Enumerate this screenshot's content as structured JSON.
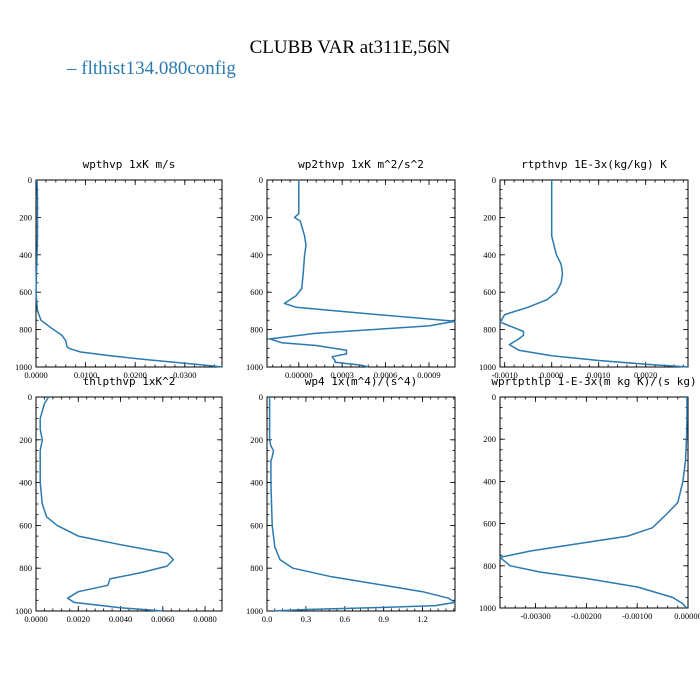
{
  "page": {
    "title": "CLUBB VAR at311E,56N",
    "legend_label": "flthist134.080config",
    "line_color": "#2a7ab0"
  },
  "chart_data": [
    {
      "type": "line",
      "title": "wpthvp  1xK m/s",
      "xlim": [
        0,
        0.0375
      ],
      "ylim": [
        1000,
        0
      ],
      "xticks": [
        0,
        0.01,
        0.02,
        0.03
      ],
      "xtick_labels": [
        "0.0000",
        "0.0100",
        "0.0200",
        "0.0300"
      ],
      "yticks": [
        0,
        200,
        400,
        600,
        800,
        1000
      ],
      "ytick_labels": [
        "0",
        "200",
        "400",
        "600",
        "800",
        "1000"
      ],
      "series": [
        {
          "x": [
            0.0002,
            0.0003,
            0.0003,
            0.0003,
            0.0002,
            0.0001,
            0.0,
            0.0003,
            0.001,
            0.003,
            0.0052,
            0.006,
            0.0062,
            0.0066,
            0.009,
            0.015,
            0.022,
            0.03,
            0.036,
            0.0375
          ],
          "y": [
            0,
            100,
            200,
            300,
            400,
            500,
            600,
            700,
            750,
            790,
            830,
            860,
            890,
            900,
            920,
            940,
            960,
            980,
            995,
            1000
          ]
        }
      ]
    },
    {
      "type": "line",
      "title": "wp2thvp  1xK m^2/s^2",
      "xlim": [
        -0.00022,
        0.00108
      ],
      "ylim": [
        1000,
        0
      ],
      "xticks": [
        0,
        0.0003,
        0.0006,
        0.0009
      ],
      "xtick_labels": [
        "0.00000",
        "0.0003",
        "0.0006",
        "0.0009"
      ],
      "yticks": [
        0,
        200,
        400,
        600,
        800,
        1000
      ],
      "ytick_labels": [
        "0",
        "200",
        "400",
        "600",
        "800",
        "1000"
      ],
      "series": [
        {
          "x": [
            0.0,
            0.0,
            0.0,
            -3e-05,
            1e-05,
            4e-05,
            5e-05,
            4e-05,
            3e-05,
            2e-05,
            -2e-05,
            -0.0001,
            -2e-05,
            0.0004,
            0.00108,
            0.0009,
            0.00012,
            -0.0002,
            -0.00012,
            0.00012,
            0.00033,
            0.00033,
            0.00023,
            0.00025,
            0.00025,
            0.00043,
            0.00048
          ],
          "y": [
            0,
            100,
            180,
            200,
            220,
            300,
            350,
            400,
            500,
            580,
            620,
            660,
            680,
            710,
            755,
            780,
            820,
            850,
            870,
            885,
            910,
            930,
            945,
            965,
            975,
            990,
            1000
          ]
        }
      ]
    },
    {
      "type": "line",
      "title": "rtpthvp  1E-3x(kg/kg) K",
      "xlim": [
        -0.0011,
        0.0029
      ],
      "ylim": [
        1000,
        0
      ],
      "xticks": [
        -0.001,
        0,
        0.001,
        0.002
      ],
      "xtick_labels": [
        "-0.0010",
        "0.0000",
        "0.0010",
        "0.0020"
      ],
      "yticks": [
        0,
        200,
        400,
        600,
        800,
        1000
      ],
      "ytick_labels": [
        "0",
        "200",
        "400",
        "600",
        "800",
        "1000"
      ],
      "series": [
        {
          "x": [
            0.0,
            0.0,
            0.0,
            0.0,
            0.0001,
            0.0002,
            0.00023,
            0.0002,
            0.0001,
            -0.0001,
            -0.0005,
            -0.001,
            -0.0011,
            -0.0008,
            -0.0006,
            -0.0006,
            -0.0007,
            -0.0009,
            -0.0007,
            0.0,
            0.001,
            0.002,
            0.0029
          ],
          "y": [
            0,
            100,
            200,
            300,
            400,
            450,
            500,
            550,
            600,
            640,
            680,
            720,
            760,
            790,
            810,
            830,
            850,
            880,
            910,
            940,
            965,
            985,
            1000
          ]
        }
      ]
    },
    {
      "type": "line",
      "title": "thlpthvp  1xK^2",
      "xlim": [
        0,
        0.0088
      ],
      "ylim": [
        1000,
        0
      ],
      "xticks": [
        0,
        0.002,
        0.004,
        0.006,
        0.008
      ],
      "xtick_labels": [
        "0.0000",
        "0.0020",
        "0.0040",
        "0.0060",
        "0.0080"
      ],
      "yticks": [
        0,
        200,
        400,
        600,
        800,
        1000
      ],
      "ytick_labels": [
        "0",
        "200",
        "400",
        "600",
        "800",
        "1000"
      ],
      "series": [
        {
          "x": [
            0.0006,
            0.0004,
            0.0002,
            0.0002,
            0.0003,
            0.0002,
            0.0002,
            0.0002,
            0.0003,
            0.0005,
            0.001,
            0.002,
            0.004,
            0.0062,
            0.0065,
            0.0062,
            0.005,
            0.0035,
            0.0034,
            0.002,
            0.0015,
            0.0018,
            0.004,
            0.006
          ],
          "y": [
            0,
            30,
            100,
            150,
            200,
            250,
            300,
            400,
            500,
            560,
            600,
            650,
            690,
            730,
            760,
            790,
            820,
            850,
            880,
            910,
            940,
            960,
            985,
            1000
          ]
        }
      ]
    },
    {
      "type": "line",
      "title": "wp4  1x(m^4)/(s^4)",
      "xlim": [
        0,
        1.45
      ],
      "ylim": [
        1000,
        0
      ],
      "xticks": [
        0,
        0.3,
        0.6,
        0.9,
        1.2
      ],
      "xtick_labels": [
        "0.0",
        "0.3",
        "0.6",
        "0.9",
        "1.2"
      ],
      "yticks": [
        0,
        200,
        400,
        600,
        800,
        1000
      ],
      "ytick_labels": [
        "0",
        "200",
        "400",
        "600",
        "800",
        "1000"
      ],
      "series": [
        {
          "x": [
            0.02,
            0.02,
            0.02,
            0.03,
            0.05,
            0.04,
            0.03,
            0.03,
            0.04,
            0.06,
            0.1,
            0.2,
            0.5,
            0.9,
            1.2,
            1.4,
            1.45,
            1.3,
            0.8,
            0.3,
            0.05
          ],
          "y": [
            0,
            100,
            200,
            230,
            250,
            280,
            300,
            400,
            600,
            700,
            760,
            800,
            840,
            880,
            910,
            940,
            960,
            975,
            985,
            993,
            1000
          ]
        }
      ]
    },
    {
      "type": "line",
      "title": "wprtpthlp  1-E-3x(m kg K)/(s kg)",
      "xlim": [
        -0.0037,
        0.0
      ],
      "ylim": [
        1000,
        0
      ],
      "xticks": [
        -0.003,
        -0.002,
        -0.001,
        0
      ],
      "xtick_labels": [
        "-0.00300",
        "-0.00200",
        "-0.00100",
        "0.00000"
      ],
      "yticks": [
        0,
        200,
        400,
        600,
        800,
        1000
      ],
      "ytick_labels": [
        "0",
        "200",
        "400",
        "600",
        "800",
        "1000"
      ],
      "series": [
        {
          "x": [
            -2e-05,
            -2e-05,
            -3e-05,
            -5e-05,
            -0.0001,
            -0.0002,
            -0.0004,
            -0.0007,
            -0.0012,
            -0.0023,
            -0.0031,
            -0.0037,
            -0.0035,
            -0.0029,
            -0.002,
            -0.001,
            -0.0003,
            -0.0001,
            -3e-05
          ],
          "y": [
            0,
            100,
            200,
            300,
            400,
            500,
            550,
            620,
            660,
            700,
            730,
            760,
            800,
            830,
            860,
            900,
            950,
            980,
            1000
          ]
        }
      ]
    }
  ]
}
